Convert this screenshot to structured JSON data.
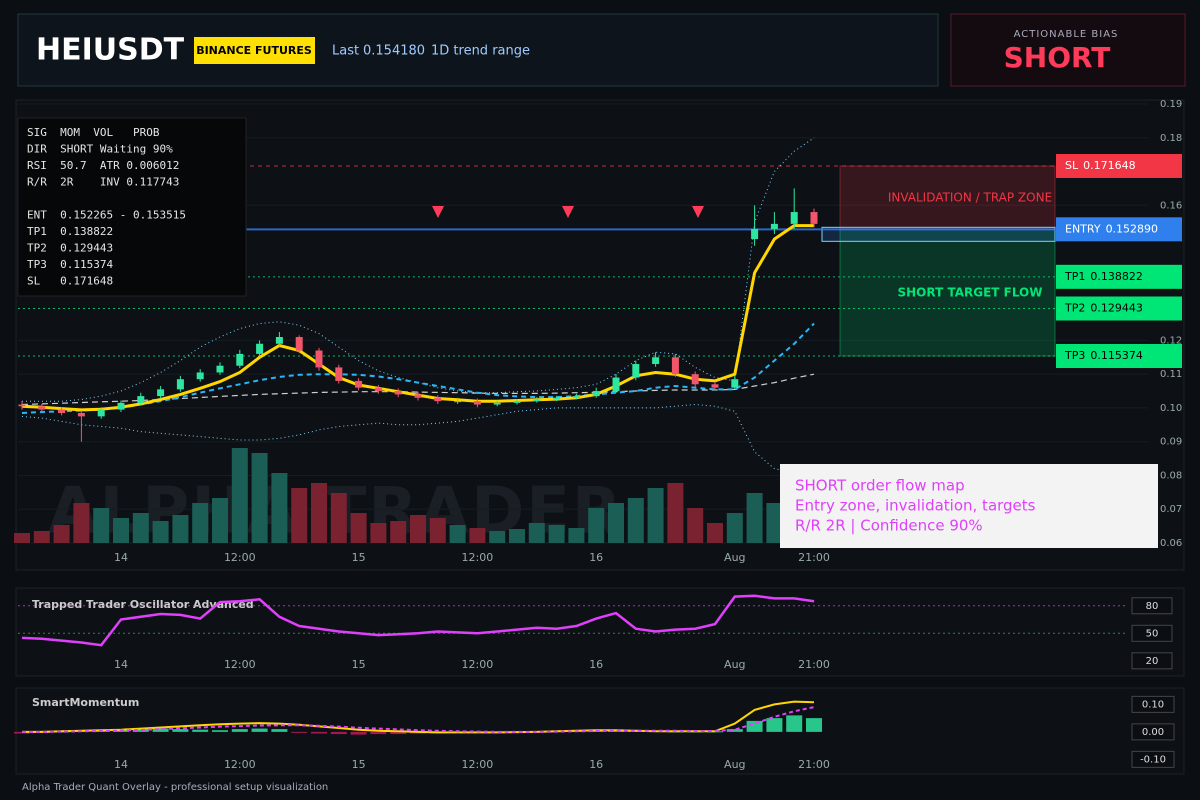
{
  "header": {
    "symbol": "HEIUSDT",
    "exchange": "BINANCE FUTURES",
    "last_label": "Last",
    "last": "0.154180",
    "range": "1D trend range"
  },
  "bias": {
    "caption": "ACTIONABLE BIAS",
    "value": "SHORT"
  },
  "info_panel": {
    "lines": [
      "SIG  MOM  VOL   PROB",
      "DIR  SHORT Waiting 90%",
      "RSI  50.7  ATR 0.006012",
      "R/R  2R    INV 0.117743",
      "ENT  0.152265 - 0.153515",
      "TP1  0.138822",
      "TP2  0.129443",
      "TP3  0.115374",
      "SL   0.171648"
    ]
  },
  "annotation": {
    "lines": [
      "SHORT order flow map",
      "Entry zone, invalidation, targets",
      "R/R 2R | Confidence 90%"
    ]
  },
  "watermark": "ALPHA TRADER",
  "footer": "Alpha Trader Quant Overlay - professional setup visualization",
  "chart_data": [
    {
      "type": "candlestick",
      "categories": [
        null,
        null,
        null,
        null,
        null,
        "14",
        null,
        null,
        null,
        null,
        null,
        "12:00",
        null,
        null,
        null,
        null,
        null,
        "15",
        null,
        null,
        null,
        null,
        null,
        "12:00",
        null,
        null,
        null,
        null,
        null,
        "16",
        null,
        null,
        null,
        null,
        null,
        null,
        "Aug",
        null,
        null,
        null,
        "21:00"
      ],
      "open": [
        0.101,
        0.1005,
        0.0995,
        0.0985,
        0.0975,
        0.0995,
        0.1015,
        0.1035,
        0.1055,
        0.1085,
        0.1105,
        0.1125,
        0.116,
        0.119,
        0.121,
        0.117,
        0.112,
        0.108,
        0.106,
        0.105,
        0.104,
        0.103,
        0.102,
        0.102,
        0.101,
        0.1015,
        0.102,
        0.1025,
        0.103,
        0.1035,
        0.105,
        0.109,
        0.113,
        0.115,
        0.11,
        0.107,
        0.106,
        0.15,
        0.153,
        0.1545,
        0.158
      ],
      "high": [
        0.102,
        0.1012,
        0.1002,
        0.0992,
        0.1002,
        0.1022,
        0.1045,
        0.1065,
        0.1095,
        0.1115,
        0.1135,
        0.1172,
        0.12,
        0.1225,
        0.1215,
        0.1178,
        0.1128,
        0.1088,
        0.1068,
        0.1058,
        0.1048,
        0.1038,
        0.103,
        0.1028,
        0.1022,
        0.1026,
        0.1032,
        0.1036,
        0.1042,
        0.106,
        0.11,
        0.114,
        0.1165,
        0.116,
        0.1108,
        0.1078,
        0.1095,
        0.16,
        0.158,
        0.165,
        0.159
      ],
      "low": [
        0.0995,
        0.0988,
        0.0978,
        0.09,
        0.0968,
        0.0988,
        0.1008,
        0.1028,
        0.1048,
        0.1078,
        0.1098,
        0.1118,
        0.1152,
        0.1182,
        0.1162,
        0.111,
        0.1072,
        0.1052,
        0.1042,
        0.1032,
        0.1022,
        0.1012,
        0.1012,
        0.1002,
        0.1005,
        0.101,
        0.1016,
        0.102,
        0.1025,
        0.103,
        0.1045,
        0.1082,
        0.1122,
        0.1092,
        0.1062,
        0.1052,
        0.1055,
        0.148,
        0.1515,
        0.153,
        0.1535
      ],
      "close": [
        0.1005,
        0.0995,
        0.0985,
        0.0975,
        0.0995,
        0.1015,
        0.1035,
        0.1055,
        0.1085,
        0.1105,
        0.1125,
        0.116,
        0.119,
        0.121,
        0.117,
        0.112,
        0.108,
        0.106,
        0.105,
        0.104,
        0.103,
        0.102,
        0.102,
        0.101,
        0.1015,
        0.102,
        0.1025,
        0.103,
        0.1035,
        0.105,
        0.109,
        0.113,
        0.115,
        0.11,
        0.107,
        0.106,
        0.1085,
        0.153,
        0.1545,
        0.158,
        0.1545
      ],
      "volume": [
        10,
        12,
        18,
        40,
        35,
        25,
        30,
        22,
        28,
        40,
        45,
        95,
        90,
        70,
        55,
        60,
        50,
        30,
        20,
        22,
        28,
        25,
        18,
        15,
        12,
        14,
        20,
        18,
        15,
        35,
        40,
        45,
        55,
        60,
        35,
        20,
        30,
        50,
        40,
        45,
        30
      ],
      "up_color": "#2ee6a0",
      "down_color": "#f2566b",
      "volume_up_color": "#1b5e56",
      "volume_down_color": "#7a2230",
      "overlays": [
        {
          "color": "#7fd3ff",
          "dash": "1 3",
          "width": 1,
          "values": [
            0.102,
            0.102,
            0.102,
            0.1025,
            0.1035,
            0.105,
            0.1075,
            0.1105,
            0.114,
            0.118,
            0.121,
            0.1235,
            0.125,
            0.1255,
            0.1245,
            0.122,
            0.118,
            0.114,
            0.111,
            0.109,
            0.1075,
            0.106,
            0.105,
            0.1045,
            0.1045,
            0.1048,
            0.105,
            0.1055,
            0.106,
            0.107,
            0.11,
            0.114,
            0.1165,
            0.116,
            0.112,
            0.109,
            0.108,
            0.155,
            0.17,
            0.176,
            0.18
          ]
        },
        {
          "color": "#7fd3ff",
          "dash": "1 3",
          "width": 1,
          "values": [
            0.0975,
            0.097,
            0.096,
            0.095,
            0.0945,
            0.094,
            0.093,
            0.0925,
            0.092,
            0.0915,
            0.091,
            0.0905,
            0.0905,
            0.091,
            0.092,
            0.0935,
            0.0945,
            0.095,
            0.0955,
            0.095,
            0.095,
            0.0955,
            0.096,
            0.097,
            0.098,
            0.099,
            0.0995,
            0.1,
            0.1,
            0.1,
            0.1,
            0.1,
            0.1,
            0.1005,
            0.101,
            0.1005,
            0.099,
            0.087,
            0.082,
            0.081,
            0.08
          ]
        },
        {
          "color": "#d0d0d0",
          "dash": "6 4",
          "width": 1.2,
          "values": [
            0.101,
            0.1012,
            0.1014,
            0.1016,
            0.1018,
            0.102,
            0.1022,
            0.1025,
            0.1028,
            0.1031,
            0.1034,
            0.1037,
            0.104,
            0.1042,
            0.1044,
            0.1046,
            0.1047,
            0.1048,
            0.1048,
            0.1048,
            0.1047,
            0.1046,
            0.1045,
            0.1044,
            0.1043,
            0.1043,
            0.1043,
            0.1044,
            0.1045,
            0.1046,
            0.1048,
            0.105,
            0.1052,
            0.1053,
            0.1053,
            0.1053,
            0.1055,
            0.1065,
            0.1075,
            0.1088,
            0.11
          ]
        },
        {
          "color": "#29b6f6",
          "dash": "5 4",
          "width": 2,
          "values": [
            0.0985,
            0.0988,
            0.099,
            0.0992,
            0.0996,
            0.1,
            0.101,
            0.102,
            0.1032,
            0.1045,
            0.1058,
            0.107,
            0.1082,
            0.1092,
            0.1098,
            0.11,
            0.11,
            0.1098,
            0.1093,
            0.1085,
            0.1075,
            0.1065,
            0.1055,
            0.1045,
            0.1038,
            0.1034,
            0.1032,
            0.1032,
            0.1035,
            0.104,
            0.1045,
            0.105,
            0.106,
            0.1065,
            0.106,
            0.1055,
            0.1055,
            0.109,
            0.114,
            0.119,
            0.125
          ]
        },
        {
          "color": "#ffd600",
          "dash": "none",
          "width": 3,
          "values": [
            0.1005,
            0.1002,
            0.0998,
            0.0994,
            0.0996,
            0.1002,
            0.1012,
            0.1025,
            0.104,
            0.1058,
            0.1078,
            0.1105,
            0.115,
            0.1185,
            0.117,
            0.113,
            0.109,
            0.1068,
            0.1058,
            0.1048,
            0.1038,
            0.1028,
            0.1024,
            0.102,
            0.102,
            0.1022,
            0.1024,
            0.1026,
            0.103,
            0.104,
            0.1065,
            0.1095,
            0.1105,
            0.11,
            0.1085,
            0.108,
            0.11,
            0.14,
            0.15,
            0.154,
            0.154
          ]
        }
      ],
      "levels": [
        {
          "name": "SL",
          "value": 0.171648,
          "color": "#f23645",
          "style": "dashed"
        },
        {
          "name": "ENTRY",
          "value": 0.15289,
          "label": "0.152890",
          "color": "#2f80ed",
          "style": "solid"
        },
        {
          "name": "TP1",
          "value": 0.138822,
          "color": "#00e676",
          "style": "dotted"
        },
        {
          "name": "TP2",
          "value": 0.129443,
          "color": "#00e676",
          "style": "dotted"
        },
        {
          "name": "TP3",
          "value": 0.115374,
          "color": "#00e676",
          "style": "dotted"
        }
      ],
      "zones": [
        {
          "label": "INVALIDATION / TRAP ZONE",
          "color": "#f23645"
        },
        {
          "label": "SHORT TARGET FLOW",
          "color": "#00e676"
        }
      ],
      "ylim": [
        0.06,
        0.19
      ],
      "yticks": [
        0.06,
        0.07,
        0.08,
        0.09,
        {
          "value": 0.1,
          "label": "0.10"
        },
        0.11,
        0.12,
        0.16,
        0.18,
        0.19
      ],
      "grid": true
    },
    {
      "type": "line",
      "title": "Trapped Trader Oscillator Advanced",
      "color": "#e040fb",
      "values": [
        45,
        44,
        42,
        40,
        37,
        65,
        68,
        71,
        70,
        66,
        84,
        85,
        87,
        68,
        58,
        55,
        52,
        50,
        48,
        49,
        50,
        52,
        51,
        50,
        52,
        54,
        56,
        55,
        58,
        66,
        72,
        55,
        52,
        54,
        55,
        60,
        90,
        91,
        88,
        88,
        85
      ],
      "level_lines": [
        {
          "value": 80,
          "color": "#e040fb"
        },
        {
          "value": 50,
          "color": "#4caf50"
        }
      ],
      "ylim": [
        10,
        95
      ],
      "yticks": [
        20,
        50,
        80
      ]
    },
    {
      "type": "histogram",
      "title": "SmartMomentum",
      "up_color": "#2ee6a0",
      "down_color": "#c2185b",
      "values": [
        -0.006,
        -0.004,
        0.002,
        0.004,
        0.006,
        0.008,
        0.01,
        0.012,
        0.01,
        0.008,
        0.006,
        0.01,
        0.012,
        0.01,
        -0.002,
        -0.006,
        -0.008,
        -0.01,
        -0.008,
        -0.008,
        -0.006,
        -0.006,
        -0.004,
        -0.004,
        -0.004,
        -0.002,
        0.002,
        0.004,
        0.004,
        0.006,
        0.008,
        0.006,
        0.004,
        0.002,
        0.002,
        0.002,
        0.01,
        0.04,
        0.05,
        0.06,
        0.05
      ],
      "lines": [
        {
          "color": "#ffd600",
          "dash": "none",
          "values": [
            0,
            0,
            0.002,
            0.004,
            0.006,
            0.008,
            0.012,
            0.016,
            0.02,
            0.024,
            0.028,
            0.03,
            0.032,
            0.03,
            0.026,
            0.02,
            0.014,
            0.008,
            0.004,
            0.002,
            0,
            -0.002,
            -0.002,
            -0.002,
            -0.002,
            -0.001,
            0,
            0.002,
            0.004,
            0.006,
            0.006,
            0.004,
            0.002,
            0.002,
            0.002,
            0.002,
            0.03,
            0.08,
            0.1,
            0.11,
            0.108
          ]
        },
        {
          "color": "#e040fb",
          "dash": "4 3",
          "values": [
            0,
            0,
            0.001,
            0.002,
            0.003,
            0.005,
            0.007,
            0.01,
            0.013,
            0.016,
            0.019,
            0.021,
            0.023,
            0.024,
            0.024,
            0.022,
            0.019,
            0.015,
            0.012,
            0.009,
            0.006,
            0.004,
            0.002,
            0.001,
            0,
            0,
            0,
            0.001,
            0.002,
            0.003,
            0.004,
            0.004,
            0.004,
            0.004,
            0.003,
            0.003,
            0.008,
            0.03,
            0.055,
            0.075,
            0.09
          ]
        }
      ],
      "ylim": [
        -0.135,
        0.145
      ],
      "yticks": [
        {
          "value": -0.1,
          "label": "-0.10"
        },
        {
          "value": 0,
          "label": "0.00"
        },
        {
          "value": 0.1,
          "label": "0.10"
        }
      ]
    }
  ]
}
